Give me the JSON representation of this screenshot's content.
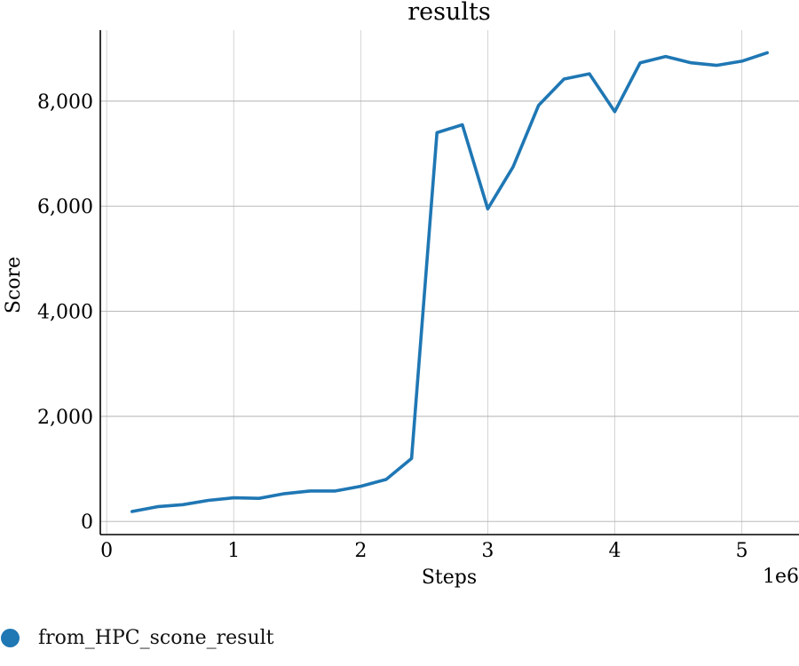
{
  "chart_data": {
    "type": "line",
    "title": "results",
    "xlabel": "Steps",
    "ylabel": "Score",
    "x_offset_label": "1e6",
    "xlim": [
      -0.05,
      5.45
    ],
    "ylim": [
      -250,
      9350
    ],
    "xticks": [
      0,
      1,
      2,
      3,
      4,
      5
    ],
    "xtick_labels": [
      "0",
      "1",
      "2",
      "3",
      "4",
      "5"
    ],
    "yticks": [
      0,
      2000,
      4000,
      6000,
      8000
    ],
    "ytick_labels": [
      "0",
      "2,000",
      "4,000",
      "6,000",
      "8,000"
    ],
    "grid": true,
    "legend_position": "bottom-left",
    "series": [
      {
        "name": "from_HPC_scone_result",
        "color": "#1f77b4",
        "x": [
          0.2,
          0.4,
          0.6,
          0.8,
          1.0,
          1.2,
          1.4,
          1.6,
          1.8,
          2.0,
          2.2,
          2.4,
          2.6,
          2.8,
          3.0,
          3.2,
          3.4,
          3.6,
          3.8,
          4.0,
          4.2,
          4.4,
          4.6,
          4.8,
          5.0,
          5.2
        ],
        "y": [
          190,
          280,
          320,
          400,
          450,
          440,
          530,
          580,
          580,
          670,
          800,
          1200,
          7400,
          7550,
          5950,
          6750,
          7920,
          8420,
          8520,
          7800,
          8730,
          8850,
          8730,
          8680,
          8760,
          8920
        ]
      }
    ]
  }
}
